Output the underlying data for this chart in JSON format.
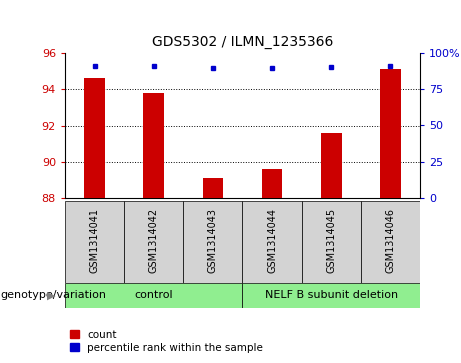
{
  "title": "GDS5302 / ILMN_1235366",
  "samples": [
    "GSM1314041",
    "GSM1314042",
    "GSM1314043",
    "GSM1314044",
    "GSM1314045",
    "GSM1314046"
  ],
  "count_values": [
    94.6,
    93.8,
    89.1,
    89.6,
    91.6,
    95.1
  ],
  "percentile_values": [
    91.2,
    90.8,
    89.5,
    89.65,
    90.2,
    91.3
  ],
  "ymin": 88,
  "ymax": 96,
  "yticks_left": [
    88,
    90,
    92,
    94,
    96
  ],
  "yticks_right": [
    0,
    25,
    50,
    75,
    100
  ],
  "left_color": "#cc0000",
  "right_color": "#0000cc",
  "bar_width": 0.35,
  "group_label_prefix": "genotype/variation",
  "legend_count": "count",
  "legend_percentile": "percentile rank within the sample",
  "tick_label_color_left": "#cc0000",
  "tick_label_color_right": "#0000cc",
  "group_color": "#90ee90",
  "sample_bg_color": "#d3d3d3",
  "grid_lines": [
    90,
    92,
    94
  ],
  "figwidth": 4.61,
  "figheight": 3.63,
  "dpi": 100
}
